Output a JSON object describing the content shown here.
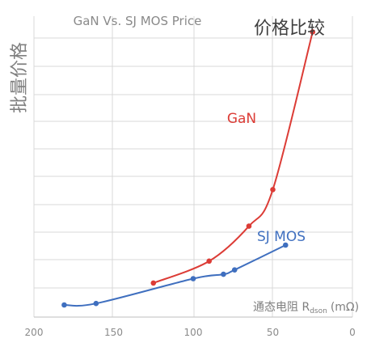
{
  "chart_data": {
    "type": "line",
    "title": "GaN Vs. SJ MOS Price",
    "subtitle": "价格比较",
    "ylabel": "批量价格",
    "xlabel": "通态电阻 R",
    "xlabel_sub": "dson",
    "xlabel_unit": "(mΩ)",
    "xlim": [
      200,
      0
    ],
    "ylim": [
      0,
      10
    ],
    "x_ticks": [
      200,
      150,
      100,
      50,
      0
    ],
    "grid": true,
    "series": [
      {
        "name": "GaN",
        "color": "#dc3c36",
        "x": [
          125,
          90,
          65,
          50,
          25
        ],
        "y": [
          0.75,
          1.5,
          2.7,
          3.95,
          9.35
        ]
      },
      {
        "name": "SJ MOS",
        "color": "#3f6fbf",
        "x": [
          181,
          161,
          100,
          81,
          74,
          42
        ],
        "y": [
          0.0,
          0.05,
          0.9,
          1.05,
          1.2,
          2.05
        ]
      }
    ]
  }
}
